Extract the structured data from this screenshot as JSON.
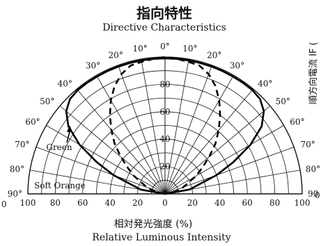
{
  "chart_data": {
    "type": "polar",
    "title": "指向特性",
    "subtitle": "Directive Characteristics",
    "xlabel": "相対発光強度 (%)",
    "xlabel_en": "Relative Luminous Intensity",
    "side_label": "順方向電流 IF (",
    "x_ticks": [
      "100",
      "80",
      "60",
      "40",
      "20",
      "0",
      "20",
      "40",
      "60",
      "80",
      "100"
    ],
    "outer_ticks": [
      "0",
      "0",
      "0"
    ],
    "radial_ticks": [
      "20",
      "40",
      "60",
      "80"
    ],
    "angle_ticks": [
      {
        "angle": -90,
        "label": "90°"
      },
      {
        "angle": -80,
        "label": "80°"
      },
      {
        "angle": -70,
        "label": "70°"
      },
      {
        "angle": -60,
        "label": "60°"
      },
      {
        "angle": -50,
        "label": "50°"
      },
      {
        "angle": -40,
        "label": "40°"
      },
      {
        "angle": -30,
        "label": "30°"
      },
      {
        "angle": -20,
        "label": "20°"
      },
      {
        "angle": -10,
        "label": "10°"
      },
      {
        "angle": 0,
        "label": "0°"
      },
      {
        "angle": 10,
        "label": "10°"
      },
      {
        "angle": 20,
        "label": "20°"
      },
      {
        "angle": 30,
        "label": "30°"
      },
      {
        "angle": 40,
        "label": "40°"
      },
      {
        "angle": 50,
        "label": "50°"
      },
      {
        "angle": 60,
        "label": "60°"
      },
      {
        "angle": 70,
        "label": "70°"
      },
      {
        "angle": 80,
        "label": "80°"
      },
      {
        "angle": 90,
        "label": "90"
      }
    ],
    "series": [
      {
        "name": "Green",
        "style": "solid",
        "angles": [
          -90,
          -80,
          -70,
          -65,
          -60,
          -55,
          -50,
          -45,
          -40,
          -35,
          -30,
          -25,
          -20,
          -15,
          -10,
          -5,
          0,
          5,
          10,
          15,
          20,
          25,
          30,
          35,
          40,
          45,
          50,
          55,
          60,
          65,
          70,
          80,
          90
        ],
        "values": [
          0,
          18,
          40,
          55,
          72,
          86,
          94,
          98,
          99,
          99,
          99,
          99,
          99,
          99,
          99,
          99,
          99,
          99,
          99,
          99,
          99,
          99,
          99,
          99,
          99,
          98,
          94,
          86,
          72,
          55,
          40,
          18,
          0
        ]
      },
      {
        "name": "Soft Orange",
        "style": "dashed",
        "angles": [
          -90,
          -80,
          -70,
          -60,
          -55,
          -50,
          -45,
          -40,
          -35,
          -30,
          -25,
          -20,
          -15,
          -10,
          -5,
          0,
          5,
          10,
          15,
          20,
          25,
          30,
          35,
          40,
          45,
          50,
          55,
          60,
          70,
          80,
          90
        ],
        "values": [
          0,
          6,
          14,
          26,
          33,
          42,
          52,
          61,
          70,
          79,
          87,
          93,
          97,
          98,
          99,
          100,
          99,
          98,
          97,
          93,
          87,
          79,
          70,
          61,
          52,
          42,
          33,
          26,
          14,
          6,
          0
        ]
      }
    ],
    "ylim": [
      0,
      100
    ]
  }
}
